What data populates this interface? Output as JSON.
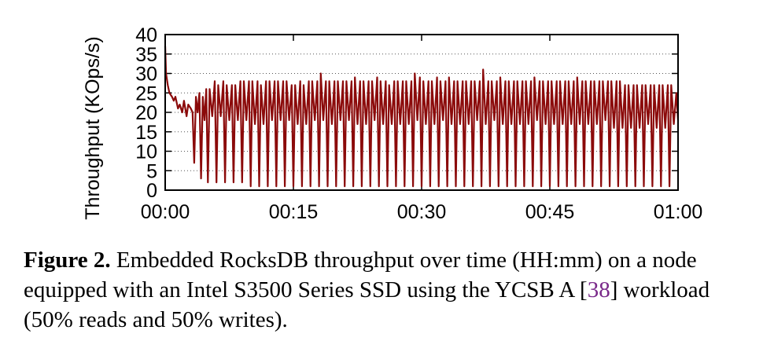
{
  "chart_data": {
    "type": "line",
    "xlabel": "",
    "ylabel": "Throughput (KOps/s)",
    "x_tick_labels": [
      "00:00",
      "00:15",
      "00:30",
      "00:45",
      "01:00"
    ],
    "y_tick_labels": [
      "0",
      "5",
      "10",
      "15",
      "20",
      "25",
      "30",
      "35",
      "40"
    ],
    "xlim_minutes": [
      0,
      60
    ],
    "ylim": [
      0,
      40
    ],
    "grid": "horizontal dotted",
    "series": [
      {
        "color": "#8b0a0a",
        "x_minutes": [
          0.0,
          0.1,
          0.3,
          0.5,
          0.8,
          1.0,
          1.2,
          1.5,
          1.7,
          2.0,
          2.2,
          2.5,
          2.7,
          3.0,
          3.2,
          3.4,
          3.6,
          3.8,
          4.0,
          4.2,
          4.4,
          4.6,
          4.8,
          5.0,
          5.2,
          5.5,
          5.8,
          6.0,
          6.2,
          6.5,
          6.8,
          7.0,
          7.2,
          7.5,
          7.8,
          8.0,
          8.2,
          8.5,
          8.8,
          9.0,
          9.2,
          9.5,
          9.8,
          10.0,
          10.2,
          10.5,
          10.8,
          11.0,
          11.2,
          11.5,
          11.8,
          12.0,
          12.2,
          12.5,
          12.8,
          13.0,
          13.2,
          13.5,
          13.8,
          14.0,
          14.2,
          14.5,
          14.8,
          15.0,
          15.2,
          15.5,
          15.8,
          16.0,
          16.2,
          16.5,
          16.8,
          17.0,
          17.2,
          17.5,
          17.8,
          18.0,
          18.2,
          18.5,
          18.8,
          19.0,
          19.2,
          19.5,
          19.8,
          20.0,
          20.2,
          20.5,
          20.8,
          21.0,
          21.2,
          21.5,
          21.8,
          22.0,
          22.2,
          22.5,
          22.8,
          23.0,
          23.2,
          23.5,
          23.8,
          24.0,
          24.2,
          24.5,
          24.8,
          25.0,
          25.2,
          25.5,
          25.8,
          26.0,
          26.2,
          26.5,
          26.8,
          27.0,
          27.2,
          27.5,
          27.8,
          28.0,
          28.2,
          28.5,
          28.8,
          29.0,
          29.2,
          29.5,
          29.8,
          30.0,
          30.2,
          30.5,
          30.8,
          31.0,
          31.2,
          31.5,
          31.8,
          32.0,
          32.2,
          32.5,
          32.8,
          33.0,
          33.2,
          33.5,
          33.8,
          34.0,
          34.2,
          34.5,
          34.8,
          35.0,
          35.2,
          35.5,
          35.8,
          36.0,
          36.2,
          36.5,
          36.8,
          37.0,
          37.2,
          37.5,
          37.8,
          38.0,
          38.2,
          38.5,
          38.8,
          39.0,
          39.2,
          39.5,
          39.8,
          40.0,
          40.2,
          40.5,
          40.8,
          41.0,
          41.2,
          41.5,
          41.8,
          42.0,
          42.2,
          42.5,
          42.8,
          43.0,
          43.2,
          43.5,
          43.8,
          44.0,
          44.2,
          44.5,
          44.8,
          45.0,
          45.2,
          45.5,
          45.8,
          46.0,
          46.2,
          46.5,
          46.8,
          47.0,
          47.2,
          47.5,
          47.8,
          48.0,
          48.2,
          48.5,
          48.8,
          49.0,
          49.2,
          49.5,
          49.8,
          50.0,
          50.2,
          50.5,
          50.8,
          51.0,
          51.2,
          51.5,
          51.8,
          52.0,
          52.2,
          52.5,
          52.8,
          53.0,
          53.2,
          53.5,
          53.8,
          54.0,
          54.2,
          54.5,
          54.8,
          55.0,
          55.2,
          55.5,
          55.8,
          56.0,
          56.2,
          56.5,
          56.8,
          57.0,
          57.2,
          57.5,
          57.8,
          58.0,
          58.2,
          58.5,
          58.8,
          59.0,
          59.2,
          59.5,
          59.8,
          60.0
        ],
        "values": [
          37,
          30,
          27,
          25,
          24,
          23,
          24,
          21,
          22,
          20,
          23,
          19,
          22,
          21,
          20,
          7,
          24,
          20,
          25,
          3,
          24,
          18,
          26,
          2,
          26,
          19,
          28,
          2,
          27,
          19,
          28,
          2,
          27,
          18,
          27,
          2,
          27,
          18,
          28,
          2,
          28,
          18,
          28,
          1,
          28,
          17,
          28,
          1,
          27,
          17,
          28,
          1,
          28,
          18,
          28,
          1,
          28,
          18,
          28,
          1,
          28,
          18,
          27,
          1,
          27,
          17,
          28,
          1,
          27,
          17,
          28,
          1,
          28,
          18,
          28,
          1,
          30,
          18,
          28,
          1,
          28,
          17,
          28,
          1,
          28,
          18,
          28,
          1,
          28,
          18,
          28,
          1,
          29,
          17,
          28,
          1,
          28,
          17,
          28,
          1,
          28,
          18,
          29,
          1,
          28,
          17,
          28,
          1,
          27,
          17,
          28,
          1,
          28,
          17,
          28,
          1,
          28,
          17,
          28,
          1,
          30,
          18,
          29,
          1,
          28,
          17,
          28,
          1,
          28,
          17,
          29,
          1,
          28,
          18,
          28,
          1,
          29,
          17,
          28,
          1,
          28,
          17,
          28,
          1,
          28,
          17,
          28,
          1,
          28,
          18,
          28,
          1,
          31,
          17,
          28,
          1,
          28,
          18,
          28,
          1,
          29,
          17,
          28,
          1,
          28,
          17,
          28,
          1,
          28,
          17,
          28,
          1,
          28,
          17,
          28,
          1,
          29,
          18,
          28,
          1,
          28,
          17,
          28,
          1,
          28,
          17,
          28,
          1,
          28,
          17,
          28,
          1,
          28,
          17,
          28,
          1,
          29,
          17,
          28,
          1,
          28,
          17,
          28,
          1,
          28,
          17,
          28,
          1,
          28,
          18,
          28,
          1,
          28,
          16,
          28,
          1,
          28,
          16,
          27,
          1,
          27,
          16,
          27,
          1,
          27,
          16,
          27,
          1,
          27,
          17,
          27,
          1,
          27,
          16,
          27,
          1,
          27,
          16,
          27,
          1,
          27,
          17,
          25,
          18
        ]
      }
    ]
  },
  "caption": {
    "label": "Figure 2.",
    "text_before_ref": " Embedded RocksDB throughput over time (HH:mm) on a node equipped with an Intel S3500 Series SSD using the YCSB A [",
    "ref": "38",
    "text_after_ref": "] workload (50% reads and 50% writes)."
  }
}
